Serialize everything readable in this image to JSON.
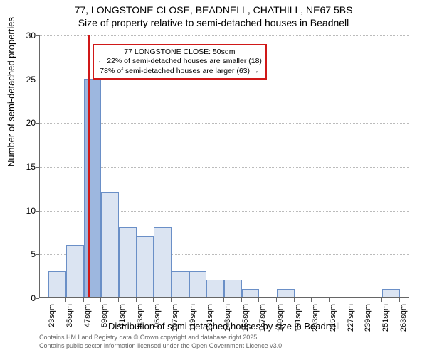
{
  "title_line1": "77, LONGSTONE CLOSE, BEADNELL, CHATHILL, NE67 5BS",
  "title_line2": "Size of property relative to semi-detached houses in Beadnell",
  "ylabel": "Number of semi-detached properties",
  "xlabel": "Distribution of semi-detached houses by size in Beadnell",
  "footnote1": "Contains HM Land Registry data © Crown copyright and database right 2025.",
  "footnote2": "Contains public sector information licensed under the Open Government Licence v3.0.",
  "annotation": {
    "line1": "77 LONGSTONE CLOSE: 50sqm",
    "line2": "← 22% of semi-detached houses are smaller (18)",
    "line3": "78% of semi-detached houses are larger (63) →"
  },
  "chart": {
    "type": "histogram",
    "xlim": [
      17,
      270
    ],
    "ylim": [
      0,
      30
    ],
    "ytick_step": 5,
    "xtick_step": 12,
    "xtick_start": 23,
    "bar_fill": "#dbe4f2",
    "bar_fill_highlight": "#9db7df",
    "bar_border": "#6a8fc7",
    "grid_color": "#bbbbbb",
    "vline_color": "#d01818",
    "vline_x": 50,
    "background": "#ffffff",
    "bars": [
      {
        "x0": 23,
        "x1": 35,
        "y": 3,
        "highlight": false
      },
      {
        "x0": 35,
        "x1": 47,
        "y": 6,
        "highlight": false
      },
      {
        "x0": 47,
        "x1": 59,
        "y": 25,
        "highlight": true
      },
      {
        "x0": 59,
        "x1": 71,
        "y": 12,
        "highlight": false
      },
      {
        "x0": 71,
        "x1": 83,
        "y": 8,
        "highlight": false
      },
      {
        "x0": 83,
        "x1": 95,
        "y": 7,
        "highlight": false
      },
      {
        "x0": 95,
        "x1": 107,
        "y": 8,
        "highlight": false
      },
      {
        "x0": 107,
        "x1": 119,
        "y": 3,
        "highlight": false
      },
      {
        "x0": 119,
        "x1": 131,
        "y": 3,
        "highlight": false
      },
      {
        "x0": 131,
        "x1": 143,
        "y": 2,
        "highlight": false
      },
      {
        "x0": 143,
        "x1": 155,
        "y": 2,
        "highlight": false
      },
      {
        "x0": 155,
        "x1": 167,
        "y": 1,
        "highlight": false
      },
      {
        "x0": 167,
        "x1": 179,
        "y": 0,
        "highlight": false
      },
      {
        "x0": 179,
        "x1": 191,
        "y": 1,
        "highlight": false
      },
      {
        "x0": 191,
        "x1": 203,
        "y": 0,
        "highlight": false
      },
      {
        "x0": 203,
        "x1": 215,
        "y": 0,
        "highlight": false
      },
      {
        "x0": 215,
        "x1": 227,
        "y": 0,
        "highlight": false
      },
      {
        "x0": 227,
        "x1": 239,
        "y": 0,
        "highlight": false
      },
      {
        "x0": 239,
        "x1": 251,
        "y": 0,
        "highlight": false
      },
      {
        "x0": 251,
        "x1": 263,
        "y": 1,
        "highlight": false
      }
    ]
  }
}
